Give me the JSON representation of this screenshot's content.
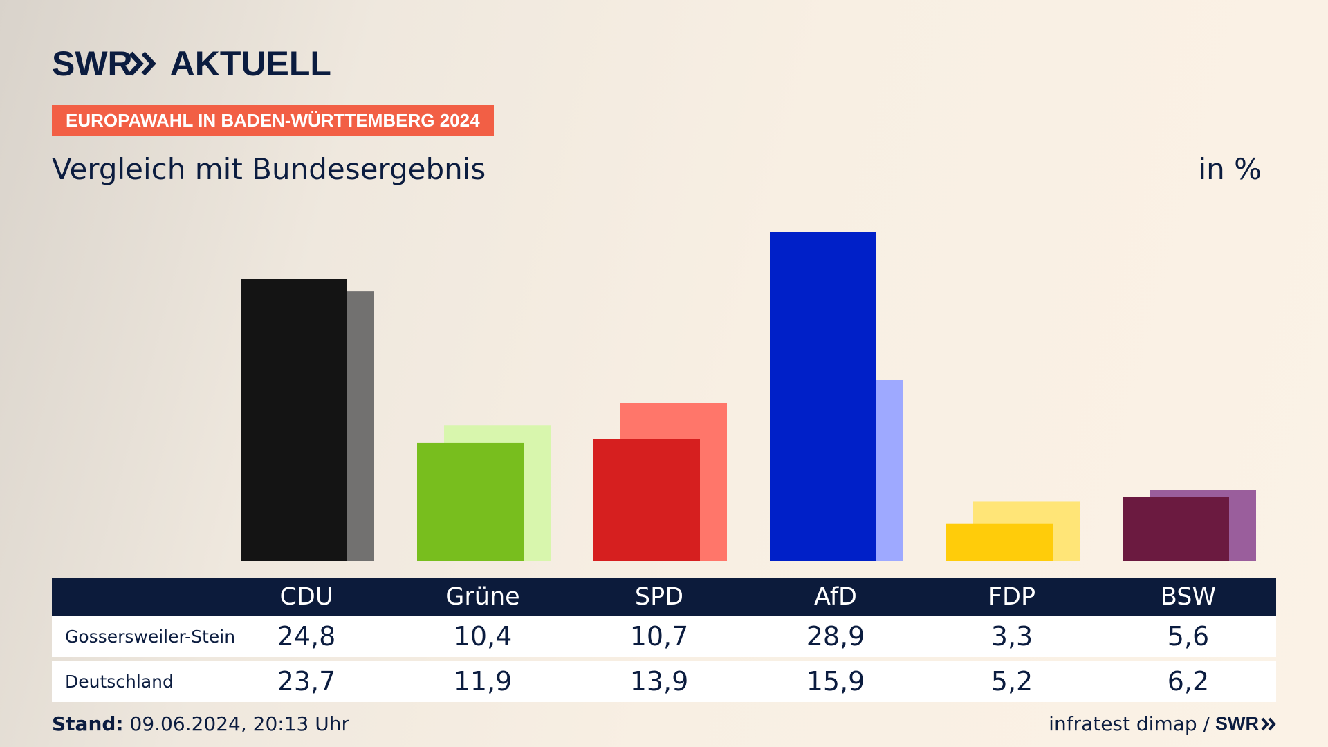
{
  "header": {
    "logo_brand": "SWR",
    "logo_title": "AKTUELL",
    "badge": "EUROPAWAHL IN BADEN-WÜRTTEMBERG 2024",
    "subtitle": "Vergleich mit Bundesergebnis",
    "unit": "in %"
  },
  "colors": {
    "navy": "#0b1c3f",
    "badge": "#f25f45"
  },
  "chart_data": {
    "type": "bar",
    "categories": [
      "CDU",
      "Grüne",
      "SPD",
      "AfD",
      "FDP",
      "BSW"
    ],
    "series": [
      {
        "name": "Gossersweiler-Stein",
        "values": [
          24.8,
          10.4,
          10.7,
          28.9,
          3.3,
          5.6
        ],
        "colors": [
          "#141414",
          "#78be1e",
          "#d61f1f",
          "#0020c8",
          "#ffcc0a",
          "#6b1a40"
        ]
      },
      {
        "name": "Deutschland",
        "values": [
          23.7,
          11.9,
          13.9,
          15.9,
          5.2,
          6.2
        ],
        "colors": [
          "#727170",
          "#d8f6ad",
          "#ff766a",
          "#9ea9ff",
          "#ffe577",
          "#9a5e9c"
        ]
      }
    ],
    "value_labels": {
      "Gossersweiler-Stein": [
        "24,8",
        "10,4",
        "10,7",
        "28,9",
        "3,3",
        "5,6"
      ],
      "Deutschland": [
        "23,7",
        "11,9",
        "13,9",
        "15,9",
        "5,2",
        "6,2"
      ]
    },
    "ylim": [
      0,
      30
    ]
  },
  "footer": {
    "stand_label": "Stand:",
    "stand_value": "09.06.2024, 20:13 Uhr",
    "source": "infratest dimap /",
    "source_brand": "SWR"
  }
}
